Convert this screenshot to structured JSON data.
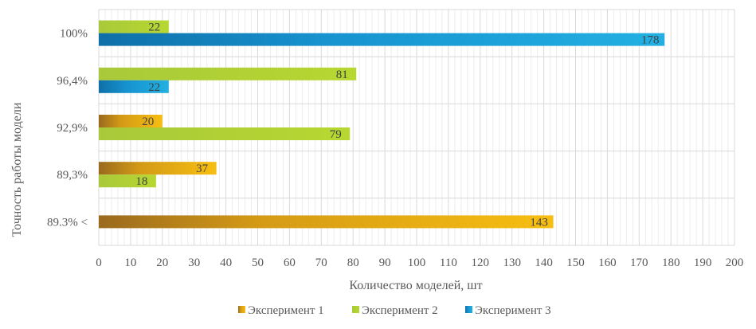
{
  "chart_data": {
    "type": "bar",
    "orientation": "horizontal",
    "categories": [
      "100%",
      "96,4%",
      "92,9%",
      "89,3%",
      "89.3% <"
    ],
    "series": [
      {
        "name": "Эксперимент 1",
        "color": "#F2B200",
        "values": [
          null,
          null,
          20,
          37,
          143
        ]
      },
      {
        "name": "Эксперимент 2",
        "color": "#B5D334",
        "values": [
          22,
          81,
          79,
          18,
          null
        ]
      },
      {
        "name": "Эксперимент 3",
        "color": "#1FA5D8",
        "values": [
          178,
          22,
          null,
          null,
          null
        ]
      }
    ],
    "xlabel": "Количество моделей, шт",
    "ylabel": "Точность работы модели",
    "xlim": [
      0,
      200
    ],
    "xticks": [
      0,
      10,
      20,
      30,
      40,
      50,
      60,
      70,
      80,
      90,
      100,
      110,
      120,
      130,
      140,
      150,
      160,
      170,
      180,
      190,
      200
    ],
    "grid": true,
    "legend_position": "bottom"
  }
}
